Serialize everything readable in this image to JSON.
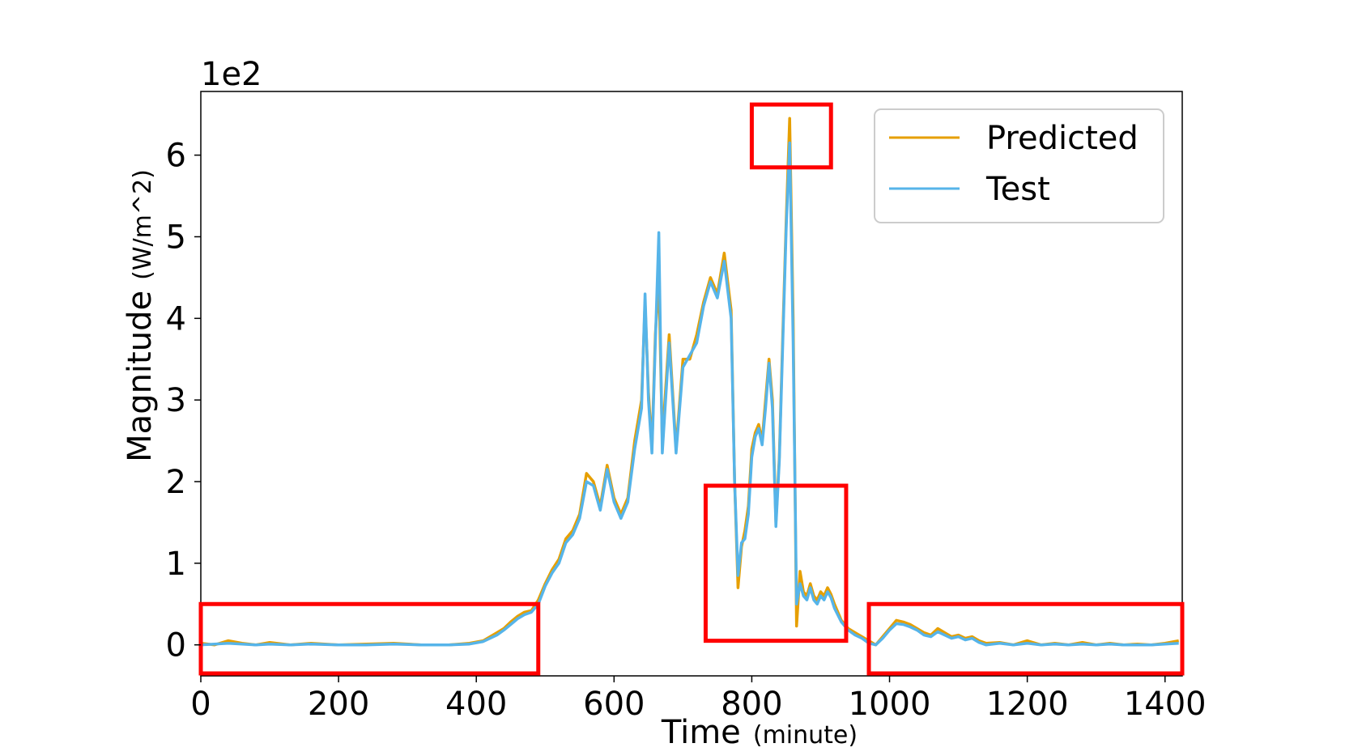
{
  "chart_data": {
    "type": "line",
    "xlabel": "Time",
    "xlabel_unit": "(minute)",
    "ylabel": "Magnitude",
    "ylabel_unit": "(W/m^2)",
    "y_scale_label": "1e2",
    "xlim": [
      0,
      1425
    ],
    "ylim": [
      -0.38,
      6.78
    ],
    "x_ticks": [
      0,
      200,
      400,
      600,
      800,
      1000,
      1200,
      1400
    ],
    "x_tick_labels": [
      "0",
      "200",
      "400",
      "600",
      "800",
      "1000",
      "1200",
      "1400"
    ],
    "y_ticks": [
      0,
      1,
      2,
      3,
      4,
      5,
      6
    ],
    "y_tick_labels": [
      "0",
      "1",
      "2",
      "3",
      "4",
      "5",
      "6"
    ],
    "grid": false,
    "legend_position": "top-right",
    "series": [
      {
        "name": "Predicted",
        "color": "#e69f00",
        "x": [
          0,
          20,
          40,
          60,
          80,
          100,
          130,
          160,
          200,
          240,
          280,
          320,
          360,
          390,
          410,
          420,
          430,
          440,
          450,
          460,
          470,
          480,
          490,
          500,
          510,
          520,
          530,
          540,
          550,
          560,
          570,
          580,
          590,
          600,
          610,
          620,
          630,
          640,
          645,
          650,
          655,
          660,
          665,
          670,
          680,
          690,
          700,
          710,
          720,
          730,
          740,
          750,
          760,
          770,
          775,
          780,
          785,
          790,
          795,
          800,
          805,
          810,
          815,
          820,
          825,
          830,
          835,
          840,
          845,
          850,
          855,
          860,
          865,
          870,
          875,
          880,
          885,
          890,
          895,
          900,
          905,
          910,
          915,
          920,
          930,
          940,
          950,
          960,
          970,
          980,
          990,
          1000,
          1010,
          1020,
          1030,
          1040,
          1050,
          1060,
          1070,
          1080,
          1090,
          1100,
          1110,
          1120,
          1130,
          1140,
          1160,
          1180,
          1200,
          1220,
          1240,
          1260,
          1280,
          1300,
          1320,
          1340,
          1360,
          1380,
          1400,
          1420
        ],
        "values": [
          0.02,
          0.0,
          0.05,
          0.02,
          0.0,
          0.03,
          0.0,
          0.02,
          0.0,
          0.01,
          0.02,
          0.0,
          0.0,
          0.02,
          0.05,
          0.1,
          0.15,
          0.2,
          0.28,
          0.35,
          0.4,
          0.42,
          0.55,
          0.75,
          0.92,
          1.05,
          1.3,
          1.4,
          1.6,
          2.1,
          2.0,
          1.7,
          2.2,
          1.8,
          1.6,
          1.8,
          2.5,
          3.0,
          4.2,
          3.1,
          2.4,
          3.8,
          4.5,
          2.5,
          3.8,
          2.4,
          3.5,
          3.5,
          3.8,
          4.2,
          4.5,
          4.3,
          4.8,
          4.1,
          2.0,
          0.7,
          1.2,
          1.4,
          1.7,
          2.4,
          2.6,
          2.7,
          2.5,
          3.0,
          3.5,
          3.0,
          1.5,
          2.3,
          3.8,
          5.2,
          6.45,
          4.0,
          0.23,
          0.9,
          0.65,
          0.6,
          0.75,
          0.6,
          0.55,
          0.65,
          0.6,
          0.7,
          0.62,
          0.5,
          0.3,
          0.2,
          0.15,
          0.1,
          0.05,
          0.0,
          0.1,
          0.2,
          0.3,
          0.28,
          0.25,
          0.2,
          0.15,
          0.12,
          0.2,
          0.15,
          0.1,
          0.12,
          0.08,
          0.1,
          0.05,
          0.02,
          0.03,
          0.0,
          0.05,
          0.0,
          0.02,
          0.0,
          0.03,
          0.0,
          0.02,
          0.0,
          0.01,
          0.0,
          0.02,
          0.05
        ]
      },
      {
        "name": "Test",
        "color": "#56b4e9",
        "x": [
          0,
          20,
          40,
          60,
          80,
          100,
          130,
          160,
          200,
          240,
          280,
          320,
          360,
          390,
          410,
          420,
          430,
          440,
          450,
          460,
          470,
          480,
          490,
          500,
          510,
          520,
          530,
          540,
          550,
          560,
          570,
          580,
          590,
          600,
          610,
          620,
          630,
          640,
          645,
          650,
          655,
          660,
          665,
          670,
          680,
          690,
          700,
          710,
          720,
          730,
          740,
          750,
          760,
          770,
          775,
          780,
          785,
          790,
          795,
          800,
          805,
          810,
          815,
          820,
          825,
          830,
          835,
          840,
          845,
          850,
          855,
          860,
          865,
          870,
          875,
          880,
          885,
          890,
          895,
          900,
          905,
          910,
          915,
          920,
          930,
          940,
          950,
          960,
          970,
          980,
          990,
          1000,
          1010,
          1020,
          1030,
          1040,
          1050,
          1060,
          1070,
          1080,
          1090,
          1100,
          1110,
          1120,
          1130,
          1140,
          1160,
          1180,
          1200,
          1220,
          1240,
          1260,
          1280,
          1300,
          1320,
          1340,
          1360,
          1380,
          1400,
          1420
        ],
        "values": [
          0.0,
          0.01,
          0.02,
          0.01,
          0.0,
          0.01,
          0.0,
          0.01,
          0.0,
          0.0,
          0.01,
          0.0,
          0.0,
          0.01,
          0.04,
          0.08,
          0.12,
          0.18,
          0.25,
          0.32,
          0.37,
          0.4,
          0.5,
          0.72,
          0.88,
          1.0,
          1.25,
          1.35,
          1.55,
          2.0,
          1.95,
          1.65,
          2.15,
          1.75,
          1.55,
          1.75,
          2.4,
          2.9,
          4.3,
          3.0,
          2.35,
          3.7,
          5.05,
          2.35,
          3.7,
          2.35,
          3.4,
          3.55,
          3.7,
          4.15,
          4.45,
          4.25,
          4.7,
          4.0,
          2.0,
          0.85,
          1.25,
          1.3,
          1.6,
          2.3,
          2.55,
          2.65,
          2.45,
          2.9,
          3.45,
          2.9,
          1.45,
          2.25,
          3.7,
          5.1,
          6.15,
          3.7,
          0.5,
          0.75,
          0.6,
          0.55,
          0.7,
          0.55,
          0.5,
          0.6,
          0.55,
          0.65,
          0.58,
          0.45,
          0.28,
          0.18,
          0.12,
          0.08,
          0.02,
          0.0,
          0.08,
          0.18,
          0.26,
          0.25,
          0.22,
          0.18,
          0.12,
          0.1,
          0.16,
          0.12,
          0.08,
          0.1,
          0.06,
          0.08,
          0.03,
          0.0,
          0.02,
          0.0,
          0.02,
          0.0,
          0.01,
          0.0,
          0.01,
          0.0,
          0.01,
          0.0,
          0.0,
          0.0,
          0.01,
          0.02
        ]
      }
    ],
    "highlight_boxes": [
      {
        "x0": 0,
        "x1": 490,
        "y0": -0.35,
        "y1": 0.5
      },
      {
        "x0": 800,
        "x1": 915,
        "y0": 5.85,
        "y1": 6.62
      },
      {
        "x0": 733,
        "x1": 937,
        "y0": 0.05,
        "y1": 1.95
      },
      {
        "x0": 970,
        "x1": 1425,
        "y0": -0.35,
        "y1": 0.5
      }
    ],
    "highlight_color": "#ff0000"
  }
}
